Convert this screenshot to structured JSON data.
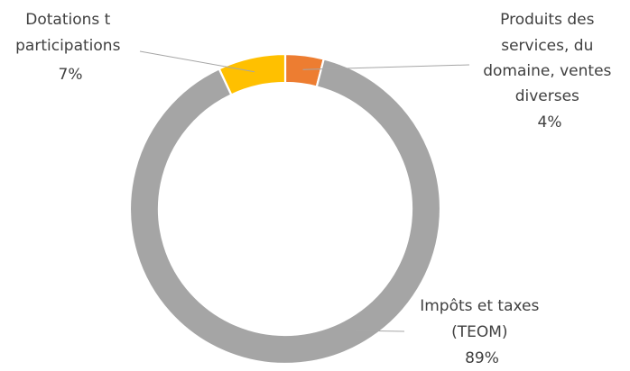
{
  "chart_data": {
    "type": "donut",
    "title": "",
    "legend": "none",
    "slices": [
      {
        "label_lines": [
          "Produits des",
          "services, du",
          "domaine, ventes",
          "diverses"
        ],
        "percent_label": "4%",
        "value": 4,
        "color": "#ED7D31"
      },
      {
        "label_lines": [
          "Impôts et taxes",
          "(TEOM)"
        ],
        "percent_label": "89%",
        "value": 89,
        "color": "#A5A5A5"
      },
      {
        "label_lines": [
          "Dotations t",
          "participations"
        ],
        "percent_label": "7%",
        "value": 7,
        "color": "#FFC000"
      }
    ]
  }
}
